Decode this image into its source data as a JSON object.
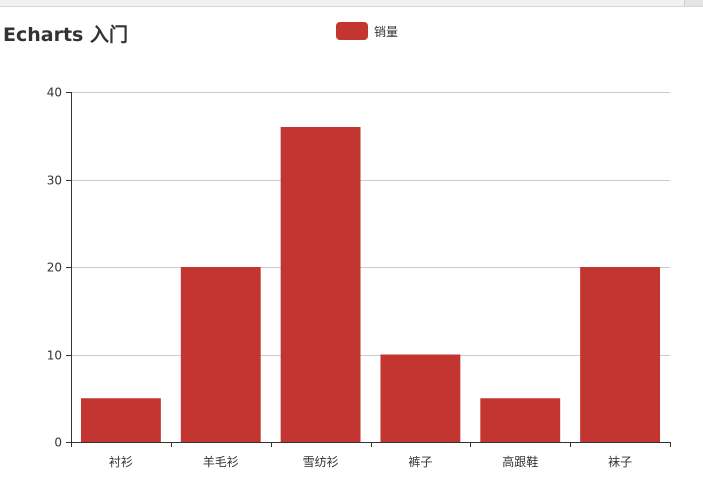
{
  "title": "Echarts 入门",
  "legend": {
    "label": "销量",
    "color": "#c23531"
  },
  "chart_data": {
    "type": "bar",
    "title": "Echarts 入门",
    "categories": [
      "衬衫",
      "羊毛衫",
      "雪纺衫",
      "裤子",
      "高跟鞋",
      "袜子"
    ],
    "series": [
      {
        "name": "销量",
        "values": [
          5,
          20,
          36,
          10,
          5,
          20
        ],
        "color": "#c23531"
      }
    ],
    "ylim": [
      0,
      40
    ],
    "yticks": [
      0,
      10,
      20,
      30,
      40
    ],
    "xlabel": "",
    "ylabel": "",
    "grid": true,
    "legend_position": "top-center"
  }
}
